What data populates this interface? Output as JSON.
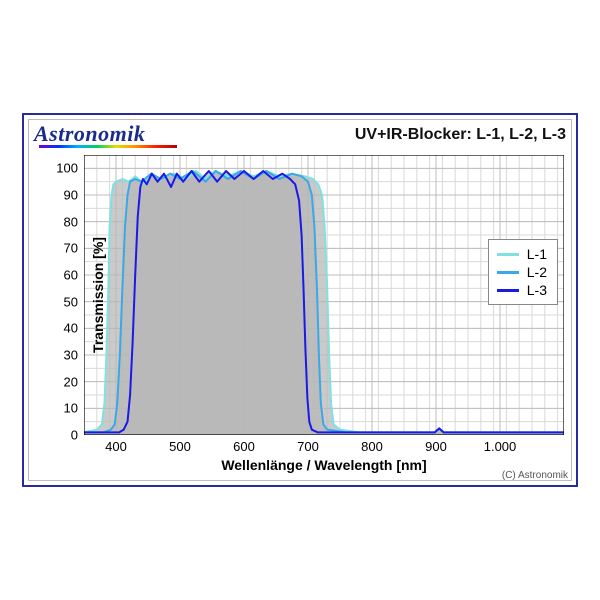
{
  "logo_text": "Astronomik",
  "title": "UV+IR-Blocker: L-1, L-2, L-3",
  "y_axis_title": "Transmission [%]",
  "x_axis_title": "Wellenlänge / Wavelength [nm]",
  "copyright": "(C) Astronomik",
  "chart": {
    "type": "line",
    "xlim": [
      350,
      1100
    ],
    "ylim": [
      0,
      105
    ],
    "xticks_major": [
      400,
      500,
      600,
      700,
      800,
      900,
      1000
    ],
    "xticks_labels": [
      "400",
      "500",
      "600",
      "700",
      "800",
      "900",
      "1.000"
    ],
    "xticks_minor_step": 20,
    "yticks_major": [
      0,
      10,
      20,
      30,
      40,
      50,
      60,
      70,
      80,
      90,
      100
    ],
    "yticks_minor_step": 5,
    "background_color": "#ffffff",
    "grid_minor_color": "#d9d9d9",
    "grid_major_color": "#bdbdbd",
    "axis_color": "#000000",
    "fill_color": "#b8b8b8",
    "fill_opacity": 0.75,
    "line_width": 2.0,
    "legend": {
      "items": [
        {
          "label": "L-1",
          "color": "#7fe1e1"
        },
        {
          "label": "L-2",
          "color": "#3aa8e8"
        },
        {
          "label": "L-3",
          "color": "#1a1ae6"
        }
      ]
    },
    "series": [
      {
        "name": "L-1",
        "color": "#7fe1e1",
        "points": [
          [
            350,
            1
          ],
          [
            370,
            2
          ],
          [
            378,
            4
          ],
          [
            382,
            12
          ],
          [
            385,
            30
          ],
          [
            388,
            55
          ],
          [
            390,
            78
          ],
          [
            393,
            90
          ],
          [
            396,
            94
          ],
          [
            400,
            95
          ],
          [
            410,
            96
          ],
          [
            420,
            95
          ],
          [
            430,
            97
          ],
          [
            445,
            94
          ],
          [
            455,
            98
          ],
          [
            470,
            96
          ],
          [
            490,
            98
          ],
          [
            510,
            96
          ],
          [
            525,
            99
          ],
          [
            540,
            96
          ],
          [
            555,
            99
          ],
          [
            575,
            97
          ],
          [
            595,
            99
          ],
          [
            615,
            97
          ],
          [
            635,
            99
          ],
          [
            655,
            97
          ],
          [
            675,
            98
          ],
          [
            695,
            97
          ],
          [
            708,
            96
          ],
          [
            716,
            94
          ],
          [
            722,
            90
          ],
          [
            726,
            78
          ],
          [
            730,
            55
          ],
          [
            733,
            30
          ],
          [
            736,
            12
          ],
          [
            740,
            4
          ],
          [
            750,
            2
          ],
          [
            780,
            1
          ],
          [
            820,
            1
          ],
          [
            870,
            1
          ],
          [
            898,
            1
          ],
          [
            905,
            2.4
          ],
          [
            912,
            1
          ],
          [
            950,
            1
          ],
          [
            1000,
            1
          ],
          [
            1050,
            1
          ],
          [
            1100,
            1
          ]
        ]
      },
      {
        "name": "L-2",
        "color": "#3aa8e8",
        "points": [
          [
            350,
            1
          ],
          [
            380,
            1
          ],
          [
            392,
            2
          ],
          [
            398,
            4
          ],
          [
            402,
            12
          ],
          [
            406,
            30
          ],
          [
            410,
            55
          ],
          [
            414,
            78
          ],
          [
            418,
            90
          ],
          [
            422,
            95
          ],
          [
            430,
            96
          ],
          [
            440,
            95
          ],
          [
            455,
            98
          ],
          [
            470,
            96
          ],
          [
            485,
            98
          ],
          [
            500,
            96
          ],
          [
            520,
            99
          ],
          [
            540,
            95
          ],
          [
            556,
            99
          ],
          [
            575,
            96
          ],
          [
            595,
            99
          ],
          [
            615,
            96
          ],
          [
            635,
            99
          ],
          [
            655,
            96
          ],
          [
            675,
            98
          ],
          [
            690,
            97
          ],
          [
            700,
            95
          ],
          [
            706,
            90
          ],
          [
            710,
            78
          ],
          [
            714,
            55
          ],
          [
            717,
            30
          ],
          [
            720,
            12
          ],
          [
            724,
            4
          ],
          [
            730,
            2
          ],
          [
            760,
            1
          ],
          [
            820,
            1
          ],
          [
            870,
            1
          ],
          [
            898,
            1
          ],
          [
            905,
            2.4
          ],
          [
            912,
            1
          ],
          [
            950,
            1
          ],
          [
            1000,
            1
          ],
          [
            1050,
            1
          ],
          [
            1100,
            1
          ]
        ]
      },
      {
        "name": "L-3",
        "color": "#1a1ae6",
        "points": [
          [
            350,
            1
          ],
          [
            390,
            1
          ],
          [
            405,
            1
          ],
          [
            412,
            2
          ],
          [
            418,
            5
          ],
          [
            422,
            15
          ],
          [
            426,
            35
          ],
          [
            430,
            60
          ],
          [
            434,
            82
          ],
          [
            438,
            93
          ],
          [
            442,
            96
          ],
          [
            448,
            94
          ],
          [
            456,
            98
          ],
          [
            465,
            95
          ],
          [
            475,
            98
          ],
          [
            486,
            93
          ],
          [
            495,
            98
          ],
          [
            505,
            95
          ],
          [
            518,
            99
          ],
          [
            530,
            95
          ],
          [
            545,
            99
          ],
          [
            558,
            95
          ],
          [
            572,
            99
          ],
          [
            585,
            96
          ],
          [
            600,
            99
          ],
          [
            615,
            96
          ],
          [
            630,
            99
          ],
          [
            645,
            96
          ],
          [
            660,
            98
          ],
          [
            672,
            96
          ],
          [
            680,
            94
          ],
          [
            686,
            88
          ],
          [
            690,
            75
          ],
          [
            693,
            55
          ],
          [
            696,
            32
          ],
          [
            699,
            14
          ],
          [
            702,
            5
          ],
          [
            706,
            2
          ],
          [
            715,
            1
          ],
          [
            760,
            1
          ],
          [
            820,
            1
          ],
          [
            870,
            1
          ],
          [
            898,
            1
          ],
          [
            905,
            2.5
          ],
          [
            912,
            1
          ],
          [
            950,
            1
          ],
          [
            1000,
            1
          ],
          [
            1050,
            1
          ],
          [
            1100,
            1
          ]
        ]
      }
    ]
  }
}
